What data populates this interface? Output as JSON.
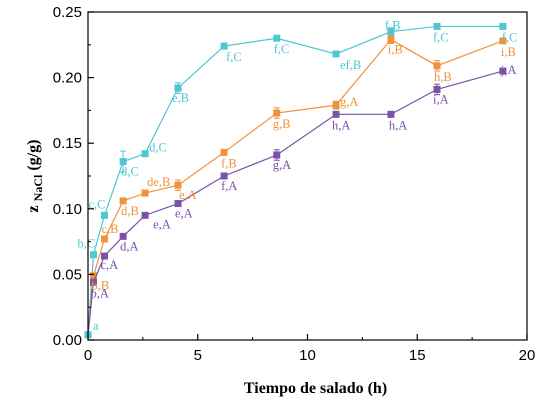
{
  "chart_data": {
    "type": "line",
    "title": "",
    "xlabel": "Tiempo de salado (h)",
    "ylabel_main": "z",
    "ylabel_sub": "NaCl",
    "ylabel_unit": " (g/g)",
    "xlim": [
      0,
      20
    ],
    "ylim": [
      0,
      0.25
    ],
    "x_ticks": [
      0,
      5,
      10,
      15,
      20
    ],
    "y_ticks": [
      0.0,
      0.05,
      0.1,
      0.15,
      0.2,
      0.25
    ],
    "x_tick_labels": [
      "0",
      "5",
      "10",
      "15",
      "20"
    ],
    "y_tick_labels": [
      "0.00",
      "0.05",
      "0.10",
      "0.15",
      "0.20",
      "0.25"
    ],
    "grid": false,
    "origin": {
      "x": 0,
      "y": 0.004,
      "label": "a",
      "color": "#4fc6d2"
    },
    "series": [
      {
        "color": "#4fc6d2",
        "x": [
          0.25,
          0.75,
          1.6,
          2.6,
          4.1,
          6.2,
          8.6,
          11.3,
          13.8,
          15.9,
          18.9
        ],
        "y": [
          0.065,
          0.095,
          0.136,
          0.142,
          0.192,
          0.224,
          0.23,
          0.218,
          0.235,
          0.239,
          0.239
        ],
        "err": [
          0.002,
          0.002,
          0.008,
          0.002,
          0.004,
          0.002,
          0.002,
          0.002,
          0.003,
          0.002,
          0.002
        ],
        "labels": [
          "b,C",
          "c,C",
          "d,C",
          "d,C",
          "e,B",
          "f,C",
          "f,C",
          "ef,B",
          "f,B",
          "f,C",
          "f,C"
        ]
      },
      {
        "color": "#f0923c",
        "x": [
          0.25,
          0.75,
          1.6,
          2.6,
          4.1,
          6.2,
          8.6,
          11.3,
          13.8,
          15.9,
          18.9
        ],
        "y": [
          0.049,
          0.077,
          0.106,
          0.112,
          0.118,
          0.143,
          0.173,
          0.179,
          0.229,
          0.209,
          0.228
        ],
        "err": [
          0.002,
          0.002,
          0.002,
          0.002,
          0.004,
          0.002,
          0.004,
          0.003,
          0.003,
          0.004,
          0.002
        ],
        "labels": [
          "b,B",
          "c,B",
          "d,B",
          "de,B",
          "e,A",
          "f,B",
          "g,B",
          "g,A",
          "i,B",
          "h,B",
          "i,B"
        ]
      },
      {
        "color": "#7a52a8",
        "x": [
          0.25,
          0.75,
          1.6,
          2.6,
          4.1,
          6.2,
          8.6,
          11.3,
          13.8,
          15.9,
          18.9
        ],
        "y": [
          0.044,
          0.064,
          0.079,
          0.095,
          0.104,
          0.125,
          0.141,
          0.172,
          0.172,
          0.191,
          0.205
        ],
        "err": [
          0.002,
          0.002,
          0.002,
          0.002,
          0.002,
          0.002,
          0.004,
          0.002,
          0.002,
          0.004,
          0.002
        ],
        "labels": [
          "b,A",
          "c,A",
          "d,A",
          "e,A",
          "e,A",
          "f,A",
          "g,A",
          "h,A",
          "h,A",
          "i,A",
          "j,A"
        ]
      }
    ]
  }
}
